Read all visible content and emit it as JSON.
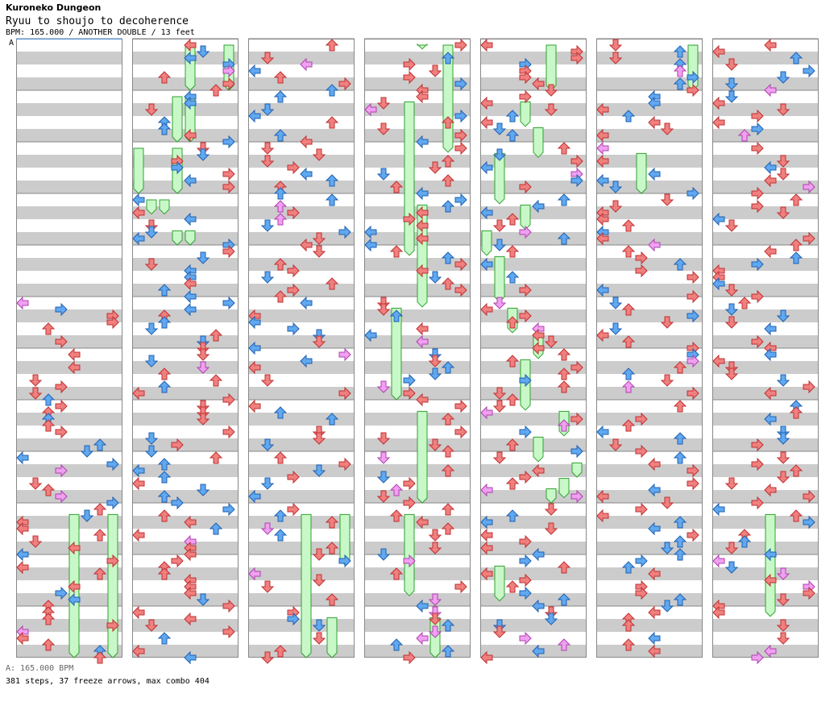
{
  "header": {
    "site_title": "Kuroneko Dungeon",
    "song_title": "Ryuu to shoujo to decoherence",
    "chart_info": "BPM: 165.000 / ANOTHER DOUBLE / 13 feet",
    "bpm_marker": "A"
  },
  "footer": {
    "bpm_line": "A: 165.000 BPM",
    "stats": "381 steps, 37 freeze arrows, max combo 404"
  },
  "chart_data": {
    "type": "step-chart",
    "columns": 7,
    "measures_per_column": 12,
    "lanes": 8,
    "colors": {
      "red_arrow": "#f08080",
      "blue_arrow": "#60a8f0",
      "pink_arrow": "#f0a0f0",
      "freeze": "#c8f8c8",
      "stripe": "#cccccc"
    },
    "summary": {
      "bpm": 165.0,
      "difficulty": "ANOTHER DOUBLE",
      "feet": 13,
      "steps": 381,
      "freeze_arrows": 37,
      "max_combo": 404
    },
    "freezes": [
      [
        1,
        4.3,
        0,
        1.0
      ],
      [
        1,
        7.3,
        0,
        1.0
      ],
      [
        1,
        3.3,
        1.0,
        2.0
      ],
      [
        1,
        4.3,
        1.0,
        2.0
      ],
      [
        1,
        0.3,
        2.0,
        3.0
      ],
      [
        1,
        3.3,
        2.0,
        3.0
      ],
      [
        1,
        1.3,
        3.0,
        3.4
      ],
      [
        1,
        2.3,
        3.0,
        3.4
      ],
      [
        1,
        3.3,
        3.6,
        4.0
      ],
      [
        1,
        4.3,
        3.6,
        4.0
      ],
      [
        3,
        4.3,
        0,
        0.2
      ],
      [
        3,
        6.3,
        0,
        2.2
      ],
      [
        3,
        3.3,
        1.1,
        4.2
      ],
      [
        3,
        4.3,
        3.1,
        5.2
      ],
      [
        3,
        2.3,
        5.1,
        7.0
      ],
      [
        3,
        4.3,
        7.1,
        9.0
      ],
      [
        3,
        3.3,
        9.1,
        10.8
      ],
      [
        3,
        5.3,
        11.1,
        12.0
      ],
      [
        4,
        5.3,
        0,
        1.0
      ],
      [
        4,
        3.3,
        1.1,
        1.7
      ],
      [
        4,
        4.3,
        1.6,
        2.3
      ],
      [
        4,
        1.3,
        2.1,
        3.2
      ],
      [
        4,
        3.3,
        3.1,
        3.7
      ],
      [
        4,
        0.3,
        3.6,
        4.2
      ],
      [
        4,
        1.3,
        4.1,
        5.1
      ],
      [
        4,
        2.3,
        5.1,
        5.7
      ],
      [
        4,
        4.3,
        5.6,
        6.2
      ],
      [
        4,
        3.3,
        6.1,
        7.2
      ],
      [
        4,
        6.3,
        7.1,
        7.7
      ],
      [
        4,
        4.3,
        7.6,
        8.2
      ],
      [
        4,
        7.3,
        8.1,
        8.5
      ],
      [
        4,
        6.3,
        8.4,
        8.9
      ],
      [
        4,
        5.3,
        8.6,
        9.0
      ],
      [
        4,
        1.3,
        10.1,
        10.9
      ],
      [
        5,
        7.3,
        0,
        1.0
      ],
      [
        5,
        3.3,
        2.1,
        3.0
      ],
      [
        6,
        4.3,
        9.1,
        11.2
      ],
      [
        0,
        4.3,
        9.1,
        12.0
      ],
      [
        0,
        7.3,
        9.1,
        12.0
      ],
      [
        2,
        4.3,
        9.1,
        12.0
      ],
      [
        2,
        7.3,
        9.1,
        10.2
      ],
      [
        2,
        6.3,
        11.1,
        12.0
      ]
    ]
  }
}
